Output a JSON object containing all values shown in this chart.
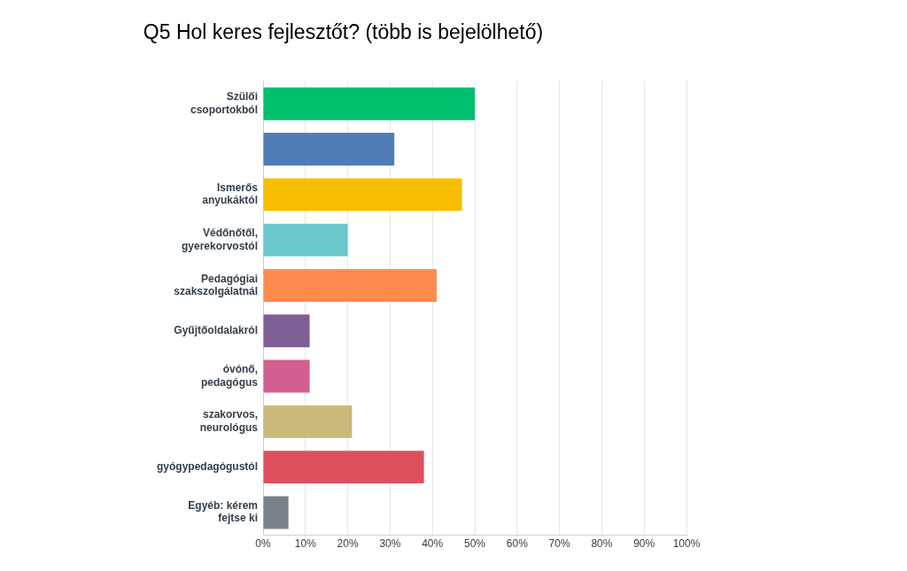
{
  "chart_data": {
    "type": "bar",
    "orientation": "horizontal",
    "title": "Q5 Hol keres fejlesztőt? (több is bejelölhető)",
    "categories": [
      "Szülői csoportokból",
      null,
      "Ismerős anyukáktól",
      "Védőnőtől, gyerekorvostól",
      "Pedagógiai szakszolgálatnál",
      "Gyűjtőoldalakról",
      "óvónő, pedagógus",
      "szakorvos, neurológus",
      "gyógypedagógustól",
      "Egyéb: kérem fejtse ki"
    ],
    "values": [
      50,
      31,
      47,
      20,
      41,
      11,
      11,
      21,
      38,
      6
    ],
    "colors": [
      "#00bf6f",
      "#507cb6",
      "#f9be00",
      "#6bc8cd",
      "#ff8b4f",
      "#7f6096",
      "#d25f90",
      "#c9b97b",
      "#de4f5e",
      "#798189"
    ],
    "xlim": [
      0,
      100
    ],
    "xticks": [
      {
        "value": 0,
        "label": "0%"
      },
      {
        "value": 10,
        "label": "10%"
      },
      {
        "value": 20,
        "label": "20%"
      },
      {
        "value": 30,
        "label": "30%"
      },
      {
        "value": 40,
        "label": "40%"
      },
      {
        "value": 50,
        "label": "50%"
      },
      {
        "value": 60,
        "label": "60%"
      },
      {
        "value": 70,
        "label": "70%"
      },
      {
        "value": 80,
        "label": "80%"
      },
      {
        "value": 90,
        "label": "90%"
      },
      {
        "value": 100,
        "label": "100%"
      }
    ],
    "grid": "x",
    "legend": false
  }
}
